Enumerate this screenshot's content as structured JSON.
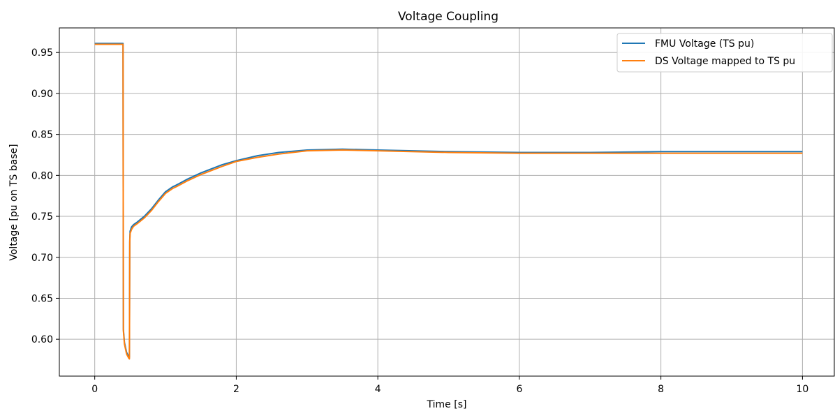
{
  "chart_data": {
    "type": "line",
    "title": "Voltage Coupling",
    "xlabel": "Time [s]",
    "ylabel": "Voltage [pu on TS base]",
    "xlim": [
      -0.5,
      10.45
    ],
    "ylim": [
      0.555,
      0.98
    ],
    "xticks": [
      0,
      2,
      4,
      6,
      8,
      10
    ],
    "xtick_labels": [
      "0",
      "2",
      "4",
      "6",
      "8",
      "10"
    ],
    "yticks": [
      0.6,
      0.65,
      0.7,
      0.75,
      0.8,
      0.85,
      0.9,
      0.95
    ],
    "ytick_labels": [
      "0.60",
      "0.65",
      "0.70",
      "0.75",
      "0.80",
      "0.85",
      "0.90",
      "0.95"
    ],
    "grid": true,
    "legend_position": "top-right",
    "series": [
      {
        "name": "FMU Voltage (TS pu)",
        "color": "#1f77b4",
        "x": [
          0,
          0.4,
          0.405,
          0.42,
          0.45,
          0.48,
          0.49,
          0.495,
          0.5,
          0.52,
          0.55,
          0.6,
          0.7,
          0.8,
          0.9,
          1.0,
          1.1,
          1.15,
          1.3,
          1.5,
          1.8,
          2.0,
          2.3,
          2.6,
          3.0,
          3.5,
          4.0,
          5.0,
          6.0,
          7.0,
          8.0,
          9.0,
          10.0
        ],
        "y": [
          0.961,
          0.961,
          0.612,
          0.596,
          0.584,
          0.579,
          0.578,
          0.72,
          0.732,
          0.737,
          0.74,
          0.743,
          0.75,
          0.759,
          0.77,
          0.78,
          0.786,
          0.788,
          0.795,
          0.803,
          0.813,
          0.818,
          0.824,
          0.828,
          0.831,
          0.832,
          0.831,
          0.829,
          0.828,
          0.828,
          0.829,
          0.829,
          0.829
        ]
      },
      {
        "name": "DS Voltage mapped to TS pu",
        "color": "#ff7f0e",
        "x": [
          0,
          0.4,
          0.405,
          0.42,
          0.45,
          0.48,
          0.49,
          0.495,
          0.5,
          0.52,
          0.55,
          0.6,
          0.7,
          0.8,
          0.9,
          1.0,
          1.1,
          1.15,
          1.3,
          1.5,
          1.8,
          2.0,
          2.3,
          2.6,
          3.0,
          3.5,
          4.0,
          5.0,
          6.0,
          7.0,
          8.0,
          9.0,
          10.0
        ],
        "y": [
          0.96,
          0.96,
          0.61,
          0.594,
          0.582,
          0.577,
          0.576,
          0.718,
          0.729,
          0.734,
          0.738,
          0.741,
          0.748,
          0.757,
          0.768,
          0.778,
          0.784,
          0.786,
          0.793,
          0.801,
          0.811,
          0.817,
          0.822,
          0.826,
          0.83,
          0.831,
          0.83,
          0.828,
          0.827,
          0.827,
          0.827,
          0.827,
          0.827
        ]
      }
    ]
  }
}
